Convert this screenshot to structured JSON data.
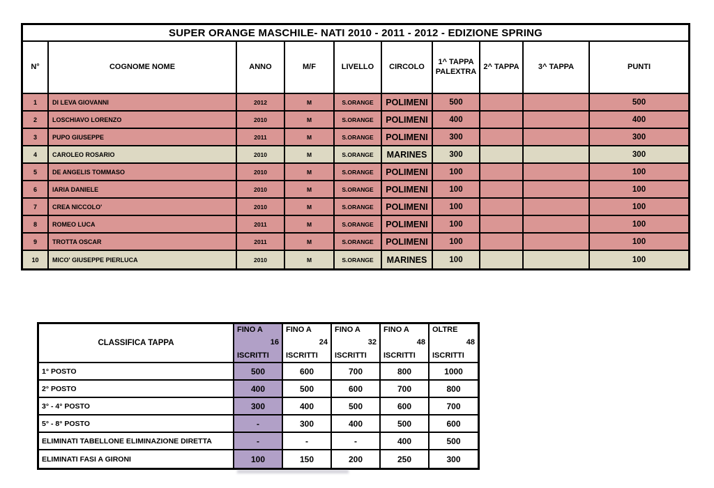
{
  "colors": {
    "row_pink": "#DA9694",
    "row_beige": "#DDD9C3",
    "column_purple": "#B1A0C7",
    "border": "#000000"
  },
  "ranking_table": {
    "title": "SUPER ORANGE MASCHILE- NATI 2010 - 2011 - 2012 - EDIZIONE SPRING",
    "columns": [
      {
        "label": "N°"
      },
      {
        "label": "COGNOME NOME"
      },
      {
        "label": "ANNO"
      },
      {
        "label": "M/F"
      },
      {
        "label": "LIVELLO"
      },
      {
        "label": "CIRCOLO"
      },
      {
        "label": "1^ TAPPA",
        "label2": "PALEXTRA"
      },
      {
        "label": "2^ TAPPA"
      },
      {
        "label": "3^ TAPPA"
      },
      {
        "label": "PUNTI"
      }
    ],
    "rows": [
      {
        "n": "1",
        "name": "DI LEVA GIOVANNI",
        "anno": "2012",
        "mf": "M",
        "livello": "S.ORANGE",
        "circolo": "POLIMENI",
        "tappa1": "500",
        "tappa2": "",
        "tappa3": "",
        "punti": "500",
        "highlight": "pink"
      },
      {
        "n": "2",
        "name": "LOSCHIAVO LORENZO",
        "anno": "2010",
        "mf": "M",
        "livello": "S.ORANGE",
        "circolo": "POLIMENI",
        "tappa1": "400",
        "tappa2": "",
        "tappa3": "",
        "punti": "400",
        "highlight": "pink"
      },
      {
        "n": "3",
        "name": "PUPO GIUSEPPE",
        "anno": "2011",
        "mf": "M",
        "livello": "S.ORANGE",
        "circolo": "POLIMENI",
        "tappa1": "300",
        "tappa2": "",
        "tappa3": "",
        "punti": "300",
        "highlight": "pink"
      },
      {
        "n": "4",
        "name": "CAROLEO ROSARIO",
        "anno": "2010",
        "mf": "M",
        "livello": "S.ORANGE",
        "circolo": "MARINES",
        "tappa1": "300",
        "tappa2": "",
        "tappa3": "",
        "punti": "300",
        "highlight": "beige"
      },
      {
        "n": "5",
        "name": "DE ANGELIS TOMMASO",
        "anno": "2010",
        "mf": "M",
        "livello": "S.ORANGE",
        "circolo": "POLIMENI",
        "tappa1": "100",
        "tappa2": "",
        "tappa3": "",
        "punti": "100",
        "highlight": "pink"
      },
      {
        "n": "6",
        "name": "IARIA DANIELE",
        "anno": "2010",
        "mf": "M",
        "livello": "S.ORANGE",
        "circolo": "POLIMENI",
        "tappa1": "100",
        "tappa2": "",
        "tappa3": "",
        "punti": "100",
        "highlight": "pink"
      },
      {
        "n": "7",
        "name": "CREA NICCOLO'",
        "anno": "2010",
        "mf": "M",
        "livello": "S.ORANGE",
        "circolo": "POLIMENI",
        "tappa1": "100",
        "tappa2": "",
        "tappa3": "",
        "punti": "100",
        "highlight": "pink"
      },
      {
        "n": "8",
        "name": "ROMEO LUCA",
        "anno": "2011",
        "mf": "M",
        "livello": "S.ORANGE",
        "circolo": "POLIMENI",
        "tappa1": "100",
        "tappa2": "",
        "tappa3": "",
        "punti": "100",
        "highlight": "pink"
      },
      {
        "n": "9",
        "name": "TROTTA OSCAR",
        "anno": "2011",
        "mf": "M",
        "livello": "S.ORANGE",
        "circolo": "POLIMENI",
        "tappa1": "100",
        "tappa2": "",
        "tappa3": "",
        "punti": "100",
        "highlight": "pink"
      },
      {
        "n": "10",
        "name": "MICO' GIUSEPPE PIERLUCA",
        "anno": "2010",
        "mf": "M",
        "livello": "S.ORANGE",
        "circolo": "MARINES",
        "tappa1": "100",
        "tappa2": "",
        "tappa3": "",
        "punti": "100",
        "highlight": "beige"
      }
    ]
  },
  "points_table": {
    "corner_label": "CLASSIFICA TAPPA",
    "columns": [
      {
        "line1": "FINO A",
        "line2": "16",
        "line3": "ISCRITTI",
        "highlight": true
      },
      {
        "line1": "FINO A",
        "line2": "24",
        "line3": "ISCRITTI",
        "highlight": false
      },
      {
        "line1": "FINO A",
        "line2": "32",
        "line3": "ISCRITTI",
        "highlight": false
      },
      {
        "line1": "FINO A",
        "line2": "48",
        "line3": "ISCRITTI",
        "highlight": false
      },
      {
        "line1": "OLTRE",
        "line2": "48",
        "line3": "ISCRITTI",
        "highlight": false
      }
    ],
    "rows": [
      {
        "label": "1° POSTO",
        "values": [
          "500",
          "600",
          "700",
          "800",
          "1000"
        ]
      },
      {
        "label": "2° POSTO",
        "values": [
          "400",
          "500",
          "600",
          "700",
          "800"
        ]
      },
      {
        "label": "3° - 4° POSTO",
        "values": [
          "300",
          "400",
          "500",
          "600",
          "700"
        ]
      },
      {
        "label": "5° - 8° POSTO",
        "values": [
          "-",
          "300",
          "400",
          "500",
          "600"
        ]
      },
      {
        "label": "ELIMINATI TABELLONE ELIMINAZIONE DIRETTA",
        "values": [
          "-",
          "-",
          "-",
          "400",
          "500"
        ]
      },
      {
        "label": "ELIMINATI FASI A GIRONI",
        "values": [
          "100",
          "150",
          "200",
          "250",
          "300"
        ]
      }
    ]
  }
}
